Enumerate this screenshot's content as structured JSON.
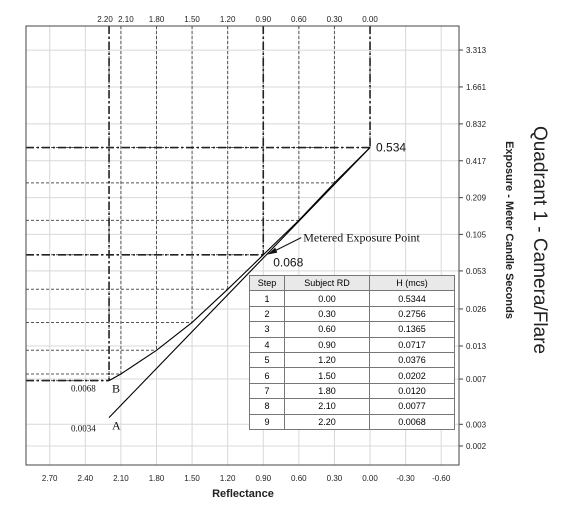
{
  "chart_data": {
    "type": "line",
    "quadrant_title": "Quadrant 1 - Camera/Flare",
    "xlabel": "Reflectance",
    "ylabel": "Exposure - Meter Candle Seconds",
    "x_reversed": true,
    "xlim": [
      2.9,
      -0.75
    ],
    "ylog": true,
    "ylim": [
      0.0014,
      5.2
    ],
    "x_ticks": [
      {
        "v": 2.7,
        "label": "2.70"
      },
      {
        "v": 2.4,
        "label": "2.40"
      },
      {
        "v": 2.1,
        "label": "2.10"
      },
      {
        "v": 1.8,
        "label": "1.80"
      },
      {
        "v": 1.5,
        "label": "1.50"
      },
      {
        "v": 1.2,
        "label": "1.20"
      },
      {
        "v": 0.9,
        "label": "0.90"
      },
      {
        "v": 0.6,
        "label": "0.60"
      },
      {
        "v": 0.3,
        "label": "0.30"
      },
      {
        "v": 0.0,
        "label": "0.00"
      },
      {
        "v": -0.3,
        "label": "-0.30"
      },
      {
        "v": -0.6,
        "label": "-0.60"
      }
    ],
    "top_ticks": [
      {
        "v": 2.2,
        "label": "2.20"
      },
      {
        "v": 2.1,
        "label": "2.10"
      },
      {
        "v": 1.8,
        "label": "1.80"
      },
      {
        "v": 1.5,
        "label": "1.50"
      },
      {
        "v": 1.2,
        "label": "1.20"
      },
      {
        "v": 0.9,
        "label": "0.90"
      },
      {
        "v": 0.6,
        "label": "0.60"
      },
      {
        "v": 0.3,
        "label": "0.30"
      },
      {
        "v": 0.0,
        "label": "0.00"
      }
    ],
    "y_ticks": [
      {
        "v": 3.313,
        "label": "3.313"
      },
      {
        "v": 1.661,
        "label": "1.661"
      },
      {
        "v": 0.832,
        "label": "0.832"
      },
      {
        "v": 0.417,
        "label": "0.417"
      },
      {
        "v": 0.209,
        "label": "0.209"
      },
      {
        "v": 0.105,
        "label": "0.105"
      },
      {
        "v": 0.053,
        "label": "0.053"
      },
      {
        "v": 0.026,
        "label": "0.026"
      },
      {
        "v": 0.013,
        "label": "0.013"
      },
      {
        "v": 0.007,
        "label": "0.007"
      },
      {
        "v": 0.003,
        "label": "0.003"
      },
      {
        "v": 0.002,
        "label": "0.002"
      }
    ],
    "series": [
      {
        "name": "A",
        "points": [
          [
            2.2,
            0.0034
          ],
          [
            0.0,
            0.534
          ]
        ]
      },
      {
        "name": "B",
        "points": [
          [
            2.2,
            0.0068
          ],
          [
            2.1,
            0.0077
          ],
          [
            1.8,
            0.012
          ],
          [
            1.5,
            0.0202
          ],
          [
            1.2,
            0.0376
          ],
          [
            0.9,
            0.0717
          ],
          [
            0.6,
            0.1365
          ],
          [
            0.3,
            0.2756
          ],
          [
            0.0,
            0.5344
          ]
        ]
      }
    ],
    "annotations": [
      {
        "text": "0.534",
        "x": 0.0,
        "y": 0.534
      },
      {
        "text": "0.068",
        "x": 0.9,
        "y": 0.068
      },
      {
        "text": "Metered Exposure Point",
        "x": 0.9,
        "y": 0.068
      },
      {
        "text": "0.0068",
        "x": 2.2,
        "y": 0.0068
      },
      {
        "text": "0.0034",
        "x": 2.2,
        "y": 0.0034
      },
      {
        "text": "A"
      },
      {
        "text": "B"
      }
    ],
    "table": {
      "headers": [
        "Step",
        "Subject RD",
        "H (mcs)"
      ],
      "rows": [
        [
          "1",
          "0.00",
          "0.5344"
        ],
        [
          "2",
          "0.30",
          "0.2756"
        ],
        [
          "3",
          "0.60",
          "0.1365"
        ],
        [
          "4",
          "0.90",
          "0.0717"
        ],
        [
          "5",
          "1.20",
          "0.0376"
        ],
        [
          "6",
          "1.50",
          "0.0202"
        ],
        [
          "7",
          "1.80",
          "0.0120"
        ],
        [
          "8",
          "2.10",
          "0.0077"
        ],
        [
          "9",
          "2.20",
          "0.0068"
        ]
      ]
    }
  }
}
